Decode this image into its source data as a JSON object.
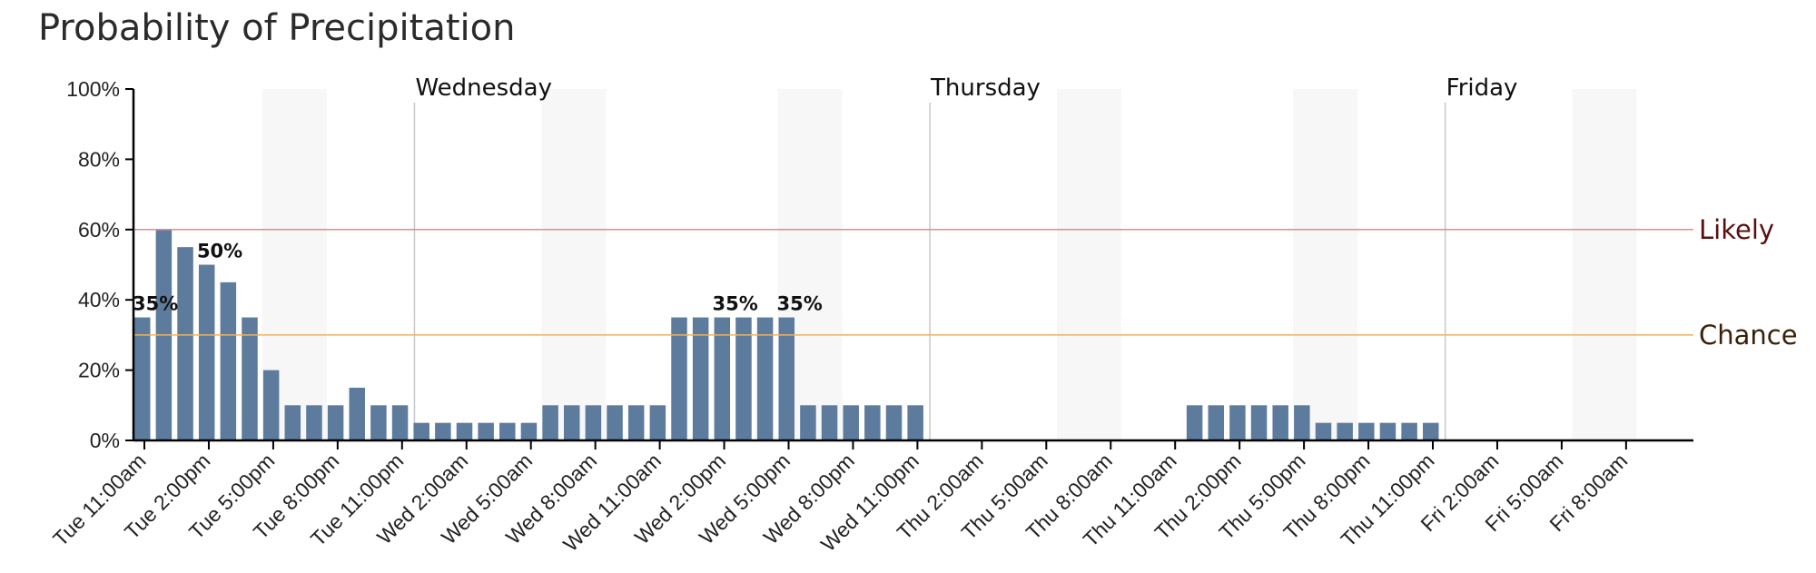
{
  "chart_data": {
    "type": "bar",
    "title": "Probability of Precipitation",
    "xlabel": "",
    "ylabel": "",
    "ylim": [
      0,
      100
    ],
    "y_ticks": [
      "0%",
      "20%",
      "40%",
      "60%",
      "80%",
      "100%"
    ],
    "x_ticks": [
      "Tue 11:00am",
      "Tue 2:00pm",
      "Tue 5:00pm",
      "Tue 8:00pm",
      "Tue 11:00pm",
      "Wed 2:00am",
      "Wed 5:00am",
      "Wed 8:00am",
      "Wed 11:00am",
      "Wed 2:00pm",
      "Wed 5:00pm",
      "Wed 8:00pm",
      "Wed 11:00pm",
      "Thu 2:00am",
      "Thu 5:00am",
      "Thu 8:00am",
      "Thu 11:00am",
      "Thu 2:00pm",
      "Thu 5:00pm",
      "Thu 8:00pm",
      "Thu 11:00pm",
      "Fri 2:00am",
      "Fri 5:00am",
      "Fri 8:00am"
    ],
    "interval_hours": 1,
    "values": [
      35,
      60,
      55,
      50,
      45,
      35,
      20,
      10,
      10,
      10,
      15,
      10,
      10,
      5,
      5,
      5,
      5,
      5,
      5,
      10,
      10,
      10,
      10,
      10,
      10,
      35,
      35,
      35,
      35,
      35,
      35,
      10,
      10,
      10,
      10,
      10,
      10,
      0,
      0,
      0,
      0,
      0,
      0,
      0,
      0,
      0,
      0,
      0,
      0,
      10,
      10,
      10,
      10,
      10,
      10,
      5,
      5,
      5,
      5,
      5,
      5,
      0,
      0,
      0,
      0,
      0,
      0,
      0,
      0,
      0,
      0,
      0,
      0
    ],
    "data_labels": [
      {
        "index": 0,
        "text": "35%"
      },
      {
        "index": 3,
        "text": "50%"
      },
      {
        "index": 27,
        "text": "35%"
      },
      {
        "index": 30,
        "text": "35%"
      }
    ],
    "day_labels": [
      {
        "index": 13,
        "text": "Wednesday"
      },
      {
        "index": 37,
        "text": "Thursday"
      },
      {
        "index": 61,
        "text": "Friday"
      }
    ],
    "reference_lines": [
      {
        "value": 60,
        "label": "Likely",
        "color": "#e38b8b",
        "text_color": "#5a1010"
      },
      {
        "value": 30,
        "label": "Chance",
        "color": "#f0b35a",
        "text_color": "#3a2008"
      }
    ],
    "night_bands": [
      [
        6,
        9
      ],
      [
        19,
        22
      ],
      [
        30,
        33
      ],
      [
        43,
        46
      ],
      [
        54,
        57
      ],
      [
        67,
        70
      ]
    ],
    "bar_color": "#5d7b9d",
    "grid": false,
    "legend": "none"
  }
}
